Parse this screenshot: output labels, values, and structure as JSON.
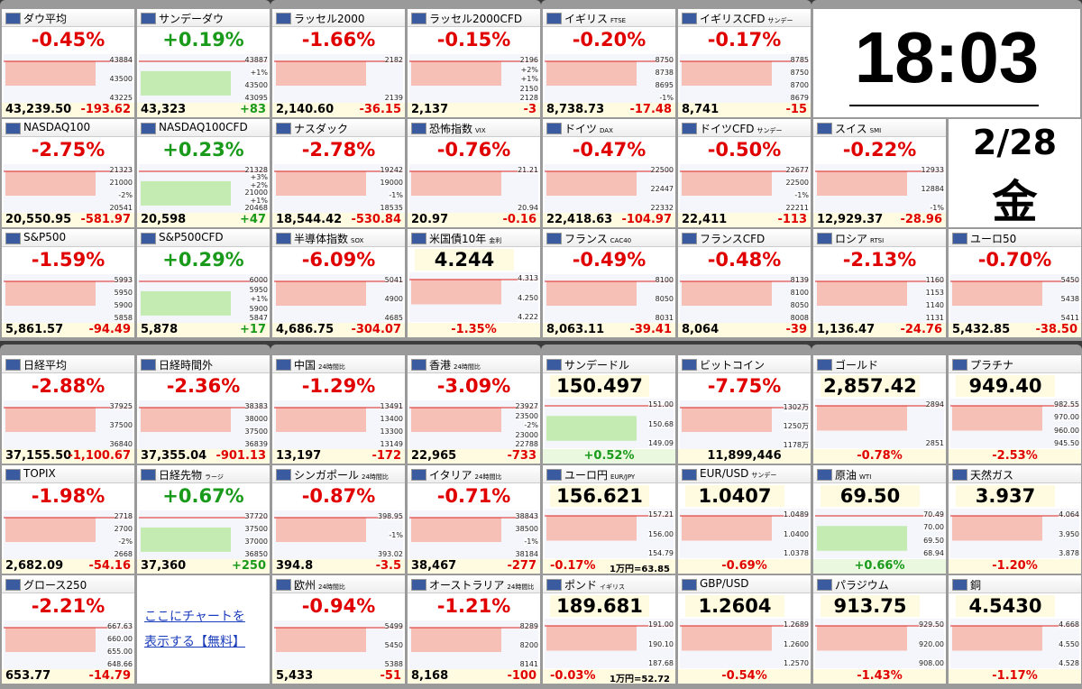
{
  "clock": {
    "time": "18:03"
  },
  "date": {
    "date": "2/28",
    "weekday": "金"
  },
  "link": {
    "line1": "ここにチャートを",
    "line2": "表示する【無料】"
  },
  "tiles": [
    {
      "name": "ダウ平均",
      "pct": "-0.45%",
      "price": "43,239.50",
      "chg": "-193.62",
      "axis": [
        "43884",
        "43500",
        "43225"
      ]
    },
    {
      "name": "サンデーダウ",
      "pct": "+0.19%",
      "price": "43,323",
      "chg": "+83",
      "axis": [
        "43887",
        "+1%",
        "43500",
        "43095"
      ]
    },
    {
      "name": "NASDAQ100",
      "pct": "-2.75%",
      "price": "20,550.95",
      "chg": "-581.97",
      "axis": [
        "21323",
        "21000",
        "-2%",
        "20541"
      ]
    },
    {
      "name": "NASDAQ100CFD",
      "pct": "+0.23%",
      "price": "20,598",
      "chg": "+47",
      "axis": [
        "21328",
        "+3%",
        "+2%",
        "21000",
        "+1%",
        "20468"
      ]
    },
    {
      "name": "S&P500",
      "pct": "-1.59%",
      "price": "5,861.57",
      "chg": "-94.49",
      "axis": [
        "5993",
        "5950",
        "5900",
        "5858"
      ]
    },
    {
      "name": "S&P500CFD",
      "pct": "+0.29%",
      "price": "5,878",
      "chg": "+17",
      "axis": [
        "6000",
        "5950",
        "+1%",
        "5900",
        "5847"
      ]
    },
    {
      "name": "ラッセル2000",
      "pct": "-1.66%",
      "price": "2,140.60",
      "chg": "-36.15",
      "axis": [
        "2182",
        "2139"
      ]
    },
    {
      "name": "ラッセル2000CFD",
      "pct": "-0.15%",
      "price": "2,137",
      "chg": "-3",
      "axis": [
        "2196",
        "+2%",
        "+1%",
        "2150",
        "2128"
      ]
    },
    {
      "name": "ナスダック",
      "pct": "-2.78%",
      "price": "18,544.42",
      "chg": "-530.84",
      "axis": [
        "19242",
        "19000",
        "-1%",
        "18535"
      ]
    },
    {
      "name": "恐怖指数",
      "sub": "VIX",
      "pct": "-0.76%",
      "price": "20.97",
      "chg": "-0.16",
      "axis": [
        "21.21",
        "20.94"
      ]
    },
    {
      "name": "半導体指数",
      "sub": "SOX",
      "pct": "-6.09%",
      "price": "4,686.75",
      "chg": "-304.07",
      "axis": [
        "5041",
        "4900",
        "4685"
      ]
    },
    {
      "name": "米国債10年",
      "sub": "金利",
      "price": "4.244",
      "pct": "-1.35%",
      "axis": [
        "4.313",
        "4.250",
        "4.222"
      ]
    },
    {
      "name": "イギリス",
      "sub": "FTSE",
      "pct": "-0.20%",
      "price": "8,738.73",
      "chg": "-17.48",
      "axis": [
        "8750",
        "8738",
        "8695",
        "-1%"
      ]
    },
    {
      "name": "イギリスCFD",
      "sub": "サンデー",
      "pct": "-0.17%",
      "price": "8,741",
      "chg": "-15",
      "axis": [
        "8785",
        "8750",
        "8700",
        "8679"
      ]
    },
    {
      "name": "ドイツ",
      "sub": "DAX",
      "pct": "-0.47%",
      "price": "22,418.63",
      "chg": "-104.97",
      "axis": [
        "22500",
        "22447",
        "22332"
      ]
    },
    {
      "name": "ドイツCFD",
      "sub": "サンデー",
      "pct": "-0.50%",
      "price": "22,411",
      "chg": "-113",
      "axis": [
        "22677",
        "22500",
        "-1%",
        "22211"
      ]
    },
    {
      "name": "フランス",
      "sub": "CAC40",
      "pct": "-0.49%",
      "price": "8,063.11",
      "chg": "-39.41",
      "axis": [
        "8100",
        "8050",
        "8031"
      ]
    },
    {
      "name": "フランスCFD",
      "pct": "-0.48%",
      "price": "8,064",
      "chg": "-39",
      "axis": [
        "8139",
        "8100",
        "8050",
        "8008"
      ]
    },
    {
      "name": "スイス",
      "sub": "SMI",
      "pct": "-0.22%",
      "price": "12,929.37",
      "chg": "-28.96",
      "axis": [
        "12933",
        "12884",
        "-1%"
      ]
    },
    {
      "name": "ロシア",
      "sub": "RTSI",
      "pct": "-2.13%",
      "price": "1,136.47",
      "chg": "-24.76",
      "axis": [
        "1160",
        "1153",
        "1140",
        "1131"
      ]
    },
    {
      "name": "ユーロ50",
      "pct": "-0.70%",
      "price": "5,432.85",
      "chg": "-38.50",
      "axis": [
        "5450",
        "5438",
        "5411"
      ]
    },
    {
      "name": "日経平均",
      "pct": "-2.88%",
      "price": "37,155.50",
      "chg": "-1,100.67",
      "axis": [
        "37925",
        "37500",
        "36840"
      ]
    },
    {
      "name": "日経時間外",
      "pct": "-2.36%",
      "price": "37,355.04",
      "chg": "-901.13",
      "axis": [
        "38383",
        "38000",
        "37500",
        "36839"
      ]
    },
    {
      "name": "TOPIX",
      "pct": "-1.98%",
      "price": "2,682.09",
      "chg": "-54.16",
      "axis": [
        "2718",
        "2700",
        "-2%",
        "2668"
      ]
    },
    {
      "name": "日経先物",
      "sub": "ラージ",
      "pct": "+0.67%",
      "price": "37,360",
      "chg": "+250",
      "axis": [
        "37720",
        "37500",
        "37000",
        "36850"
      ]
    },
    {
      "name": "グロース250",
      "pct": "-2.21%",
      "price": "653.77",
      "chg": "-14.79",
      "axis": [
        "667.63",
        "660.00",
        "655.00",
        "648.66"
      ]
    },
    {
      "name": "中国",
      "sub": "24時間比",
      "pct": "-1.29%",
      "price": "13,197",
      "chg": "-172",
      "axis": [
        "13491",
        "13400",
        "13300",
        "13149"
      ]
    },
    {
      "name": "香港",
      "sub": "24時間比",
      "pct": "-3.09%",
      "price": "22,965",
      "chg": "-733",
      "axis": [
        "23927",
        "23500",
        "-2%",
        "23000",
        "22788"
      ]
    },
    {
      "name": "シンガポール",
      "sub": "24時間比",
      "pct": "-0.87%",
      "price": "394.8",
      "chg": "-3.5",
      "axis": [
        "398.95",
        "-1%",
        "393.02"
      ]
    },
    {
      "name": "イタリア",
      "sub": "24時間比",
      "pct": "-0.71%",
      "price": "38,467",
      "chg": "-277",
      "axis": [
        "38843",
        "38500",
        "-1%",
        "38184"
      ]
    },
    {
      "name": "欧州",
      "sub": "24時間比",
      "pct": "-0.94%",
      "price": "5,433",
      "chg": "-51",
      "axis": [
        "5499",
        "5450",
        "5388"
      ]
    },
    {
      "name": "オーストラリア",
      "sub": "24時間比",
      "pct": "-1.21%",
      "price": "8,168",
      "chg": "-100",
      "axis": [
        "8289",
        "8200",
        "8141"
      ]
    },
    {
      "name": "サンデードル",
      "price": "150.497",
      "pct": "+0.52%",
      "axis": [
        "151.00",
        "150.68",
        "149.09"
      ]
    },
    {
      "name": "ビットコイン",
      "pct": "-7.75%",
      "price": "11,899,446",
      "axis": [
        "1302万",
        "1250万",
        "1178万"
      ]
    },
    {
      "name": "ユーロ円",
      "sub": "EUR/JPY",
      "price": "156.621",
      "pct": "-0.17%",
      "note": "1万円=63.85",
      "axis": [
        "157.21",
        "156.00",
        "154.79"
      ]
    },
    {
      "name": "EUR/USD",
      "sub": "サンデー",
      "price": "1.0407",
      "pct": "-0.69%",
      "axis": [
        "1.0489",
        "1.0400",
        "1.0378"
      ]
    },
    {
      "name": "ポンド",
      "sub": "イギリス",
      "price": "189.681",
      "pct": "-0.03%",
      "note": "1万円=52.72",
      "axis": [
        "191.00",
        "190.10",
        "187.68"
      ]
    },
    {
      "name": "GBP/USD",
      "price": "1.2604",
      "pct": "-0.54%",
      "axis": [
        "1.2689",
        "1.2600",
        "1.2570"
      ]
    },
    {
      "name": "ゴールド",
      "price": "2,857.42",
      "pct": "-0.78%",
      "axis": [
        "2894",
        "2851"
      ]
    },
    {
      "name": "プラチナ",
      "price": "949.40",
      "pct": "-2.53%",
      "axis": [
        "982.55",
        "970.00",
        "960.00",
        "945.50"
      ]
    },
    {
      "name": "原油",
      "sub": "WTI",
      "price": "69.50",
      "pct": "+0.66%",
      "axis": [
        "70.49",
        "70.00",
        "69.50",
        "68.94"
      ]
    },
    {
      "name": "天然ガス",
      "price": "3.937",
      "pct": "-1.20%",
      "axis": [
        "4.064",
        "3.950",
        "3.878"
      ]
    },
    {
      "name": "パラジウム",
      "price": "913.75",
      "pct": "-1.43%",
      "axis": [
        "929.50",
        "920.00",
        "908.00"
      ]
    },
    {
      "name": "銅",
      "price": "4.5430",
      "pct": "-1.17%",
      "axis": [
        "4.668",
        "4.550",
        "4.528"
      ]
    }
  ]
}
